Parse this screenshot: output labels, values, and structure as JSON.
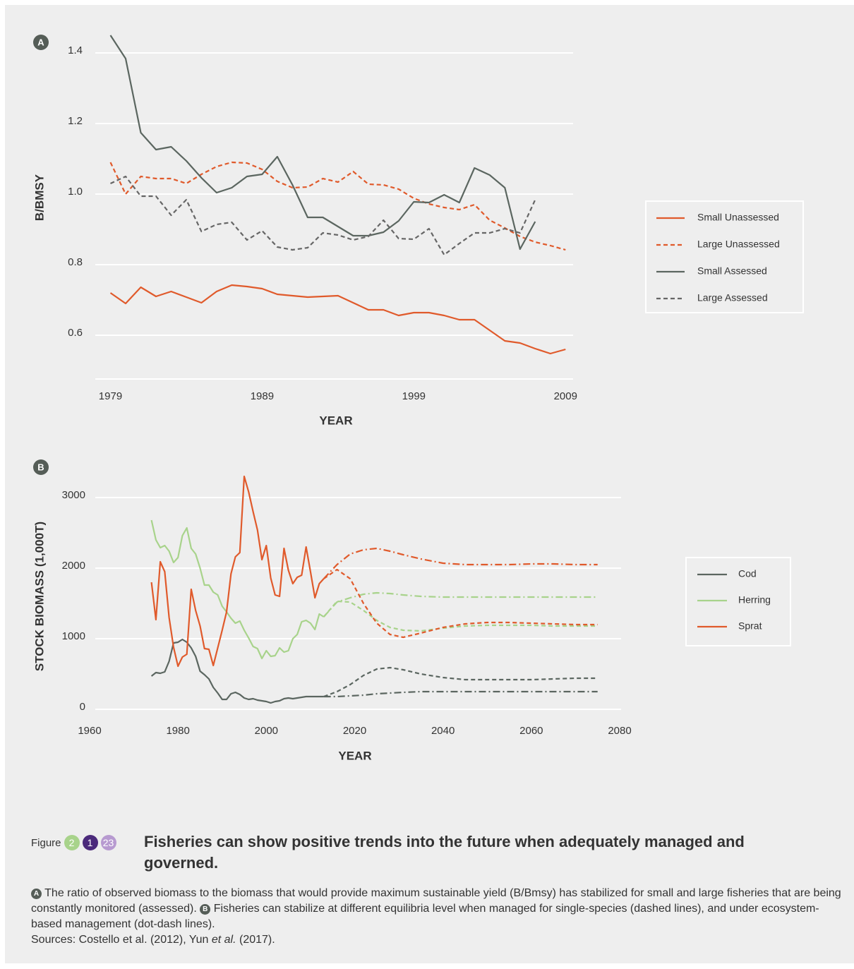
{
  "chart_data": [
    {
      "type": "line",
      "panel": "A",
      "x_label": "YEAR",
      "y_label": "B/BMSY",
      "x": [
        1979,
        1980,
        1981,
        1982,
        1983,
        1984,
        1985,
        1986,
        1987,
        1988,
        1989,
        1990,
        1991,
        1992,
        1993,
        1994,
        1995,
        1996,
        1997,
        1998,
        1999,
        2000,
        2001,
        2002,
        2003,
        2004,
        2005,
        2006,
        2007,
        2008,
        2009
      ],
      "xlim": [
        1978,
        2009.5
      ],
      "xticks": [
        1979,
        1989,
        1999,
        2009
      ],
      "ylim": [
        0.476,
        1.5
      ],
      "yticks": [
        0.6,
        0.8,
        {
          "value": 1,
          "label": "1.0"
        },
        1.2,
        1.4
      ],
      "grid": true,
      "legend": "right",
      "series": [
        {
          "name": "Small Unassessed",
          "color": "#e05a2b",
          "style": "solid",
          "values": [
            0.72,
            0.69,
            0.736,
            0.71,
            0.724,
            0.708,
            0.692,
            0.724,
            0.742,
            0.738,
            0.732,
            0.716,
            0.712,
            0.708,
            0.71,
            0.712,
            0.692,
            0.672,
            0.672,
            0.656,
            0.664,
            0.664,
            0.656,
            0.644,
            0.644,
            0.614,
            0.584,
            0.578,
            0.562,
            0.548,
            0.56
          ]
        },
        {
          "name": "Large Unassessed",
          "color": "#e05a2b",
          "style": "dashed",
          "values": [
            1.09,
            1.0,
            1.05,
            1.044,
            1.044,
            1.03,
            1.056,
            1.078,
            1.09,
            1.088,
            1.07,
            1.036,
            1.018,
            1.02,
            1.044,
            1.034,
            1.064,
            1.028,
            1.026,
            1.014,
            0.988,
            0.972,
            0.962,
            0.956,
            0.97,
            0.926,
            0.904,
            0.88,
            0.864,
            0.854,
            0.842
          ]
        },
        {
          "name": "Small Assessed",
          "color": "#5b6660",
          "style": "solid",
          "values": [
            1.45,
            1.384,
            1.174,
            1.126,
            1.134,
            1.094,
            1.046,
            1.004,
            1.018,
            1.05,
            1.056,
            1.106,
            1.026,
            0.934,
            0.934,
            0.908,
            0.882,
            0.882,
            0.892,
            0.924,
            0.978,
            0.976,
            0.998,
            0.976,
            1.074,
            1.054,
            1.018,
            0.844,
            0.922,
            null,
            null
          ]
        },
        {
          "name": "Large Assessed",
          "color": "#666666",
          "style": "dashed",
          "values": [
            1.03,
            1.05,
            0.994,
            0.994,
            0.94,
            0.984,
            0.894,
            0.914,
            0.92,
            0.87,
            0.896,
            0.85,
            0.842,
            0.848,
            0.89,
            0.884,
            0.87,
            0.88,
            0.926,
            0.874,
            0.872,
            0.902,
            0.828,
            0.86,
            0.89,
            0.89,
            0.902,
            0.89,
            0.984,
            null,
            null
          ]
        }
      ]
    },
    {
      "type": "line",
      "panel": "B",
      "x_label": "YEAR",
      "y_label": "STOCK BIOMASS (1,000T)",
      "x": [
        1974,
        1975,
        1976,
        1977,
        1978,
        1979,
        1980,
        1981,
        1982,
        1983,
        1984,
        1985,
        1986,
        1987,
        1988,
        1989,
        1990,
        1991,
        1992,
        1993,
        1994,
        1995,
        1996,
        1997,
        1998,
        1999,
        2000,
        2001,
        2002,
        2003,
        2004,
        2005,
        2006,
        2007,
        2008,
        2009,
        2010,
        2011,
        2012,
        2013,
        2016,
        2019,
        2022,
        2025,
        2028,
        2031,
        2035,
        2040,
        2045,
        2050,
        2055,
        2060,
        2065,
        2070,
        2075
      ],
      "xlim": [
        1960,
        2080
      ],
      "xticks": [
        1960,
        1980,
        2000,
        2020,
        2040,
        2060,
        2080
      ],
      "ylim": [
        0,
        3500
      ],
      "yticks": [
        0,
        1000,
        2000,
        3000
      ],
      "grid": true,
      "legend": "right",
      "line_styles": {
        "values": "solid",
        "single_species": "dashed",
        "ecosystem": "dash-dot"
      },
      "series": [
        {
          "name": "Cod",
          "color": "#5b6660",
          "values": [
            470,
            520,
            510,
            530,
            680,
            940,
            950,
            990,
            950,
            870,
            750,
            540,
            490,
            430,
            310,
            230,
            140,
            140,
            220,
            240,
            210,
            160,
            140,
            150,
            130,
            120,
            110,
            90,
            110,
            120,
            150,
            160,
            150,
            160,
            170,
            180,
            180,
            180,
            180,
            180,
            null,
            null,
            null,
            null,
            null,
            null,
            null,
            null,
            null,
            null,
            null,
            null,
            null,
            null,
            null
          ],
          "single_species": [
            null,
            null,
            null,
            null,
            null,
            null,
            null,
            null,
            null,
            null,
            null,
            null,
            null,
            null,
            null,
            null,
            null,
            null,
            null,
            null,
            null,
            null,
            null,
            null,
            null,
            null,
            null,
            null,
            null,
            null,
            null,
            null,
            null,
            null,
            null,
            null,
            null,
            null,
            null,
            180,
            250,
            350,
            480,
            570,
            590,
            560,
            500,
            450,
            420,
            420,
            420,
            420,
            430,
            440,
            440
          ],
          "ecosystem": [
            null,
            null,
            null,
            null,
            null,
            null,
            null,
            null,
            null,
            null,
            null,
            null,
            null,
            null,
            null,
            null,
            null,
            null,
            null,
            null,
            null,
            null,
            null,
            null,
            null,
            null,
            null,
            null,
            null,
            null,
            null,
            null,
            null,
            null,
            null,
            null,
            null,
            null,
            null,
            180,
            180,
            190,
            200,
            220,
            230,
            240,
            250,
            250,
            250,
            250,
            250,
            250,
            250,
            250,
            250
          ]
        },
        {
          "name": "Herring",
          "color": "#a8d38b",
          "values": [
            2680,
            2400,
            2290,
            2320,
            2240,
            2080,
            2150,
            2460,
            2570,
            2280,
            2200,
            2000,
            1760,
            1760,
            1660,
            1620,
            1460,
            1380,
            1290,
            1220,
            1250,
            1120,
            1010,
            890,
            860,
            720,
            830,
            750,
            760,
            870,
            810,
            830,
            1000,
            1060,
            1240,
            1260,
            1220,
            1130,
            1350,
            1310,
            null,
            null,
            null,
            null,
            null,
            null,
            null,
            null,
            null,
            null,
            null,
            null,
            null,
            null,
            null
          ],
          "single_species": [
            null,
            null,
            null,
            null,
            null,
            null,
            null,
            null,
            null,
            null,
            null,
            null,
            null,
            null,
            null,
            null,
            null,
            null,
            null,
            null,
            null,
            null,
            null,
            null,
            null,
            null,
            null,
            null,
            null,
            null,
            null,
            null,
            null,
            null,
            null,
            null,
            null,
            null,
            null,
            1310,
            1530,
            1520,
            1400,
            1260,
            1160,
            1120,
            1110,
            1150,
            1180,
            1190,
            1190,
            1190,
            1180,
            1180,
            1180
          ],
          "ecosystem": [
            null,
            null,
            null,
            null,
            null,
            null,
            null,
            null,
            null,
            null,
            null,
            null,
            null,
            null,
            null,
            null,
            null,
            null,
            null,
            null,
            null,
            null,
            null,
            null,
            null,
            null,
            null,
            null,
            null,
            null,
            null,
            null,
            null,
            null,
            null,
            null,
            null,
            null,
            null,
            1310,
            1520,
            1580,
            1630,
            1650,
            1640,
            1620,
            1600,
            1590,
            1590,
            1590,
            1590,
            1590,
            1590,
            1590,
            1590
          ]
        },
        {
          "name": "Sprat",
          "color": "#e05a2b",
          "values": [
            1800,
            1270,
            2090,
            1950,
            1300,
            880,
            610,
            740,
            780,
            1700,
            1400,
            1180,
            860,
            850,
            620,
            870,
            1120,
            1380,
            1920,
            2160,
            2220,
            3300,
            3080,
            2800,
            2540,
            2120,
            2320,
            1860,
            1620,
            1600,
            2280,
            1970,
            1780,
            1870,
            1900,
            2300,
            1950,
            1580,
            1780,
            1850,
            null,
            null,
            null,
            null,
            null,
            null,
            null,
            null,
            null,
            null,
            null,
            null,
            null,
            null,
            null
          ],
          "single_species": [
            null,
            null,
            null,
            null,
            null,
            null,
            null,
            null,
            null,
            null,
            null,
            null,
            null,
            null,
            null,
            null,
            null,
            null,
            null,
            null,
            null,
            null,
            null,
            null,
            null,
            null,
            null,
            null,
            null,
            null,
            null,
            null,
            null,
            null,
            null,
            null,
            null,
            null,
            null,
            1850,
            1980,
            1850,
            1500,
            1220,
            1060,
            1020,
            1080,
            1160,
            1210,
            1230,
            1230,
            1220,
            1210,
            1200,
            1200
          ],
          "ecosystem": [
            null,
            null,
            null,
            null,
            null,
            null,
            null,
            null,
            null,
            null,
            null,
            null,
            null,
            null,
            null,
            null,
            null,
            null,
            null,
            null,
            null,
            null,
            null,
            null,
            null,
            null,
            null,
            null,
            null,
            null,
            null,
            null,
            null,
            null,
            null,
            null,
            null,
            null,
            null,
            1850,
            2050,
            2200,
            2260,
            2280,
            2240,
            2190,
            2130,
            2070,
            2050,
            2050,
            2050,
            2060,
            2060,
            2050,
            2050
          ]
        }
      ]
    }
  ],
  "caption": {
    "label": "Figure",
    "numbers": [
      "2",
      "1",
      "23"
    ],
    "title": "Fisheries can show positive trends into the future when adequately managed and governed.",
    "part_a": "The ratio of observed biomass to the biomass that would provide maximum sustainable yield (B/Bmsy) has stabilized for small and large fisheries that are being constantly monitored (assessed).",
    "part_b": "Fisheries can stabilize at different equilibria level when managed for single-species (dashed lines), and under ecosystem-based management (dot-dash lines).",
    "sources": "Sources: Costello et al. (2012), Yun",
    "sources_italic": "et al.",
    "sources_end": "(2017)."
  }
}
